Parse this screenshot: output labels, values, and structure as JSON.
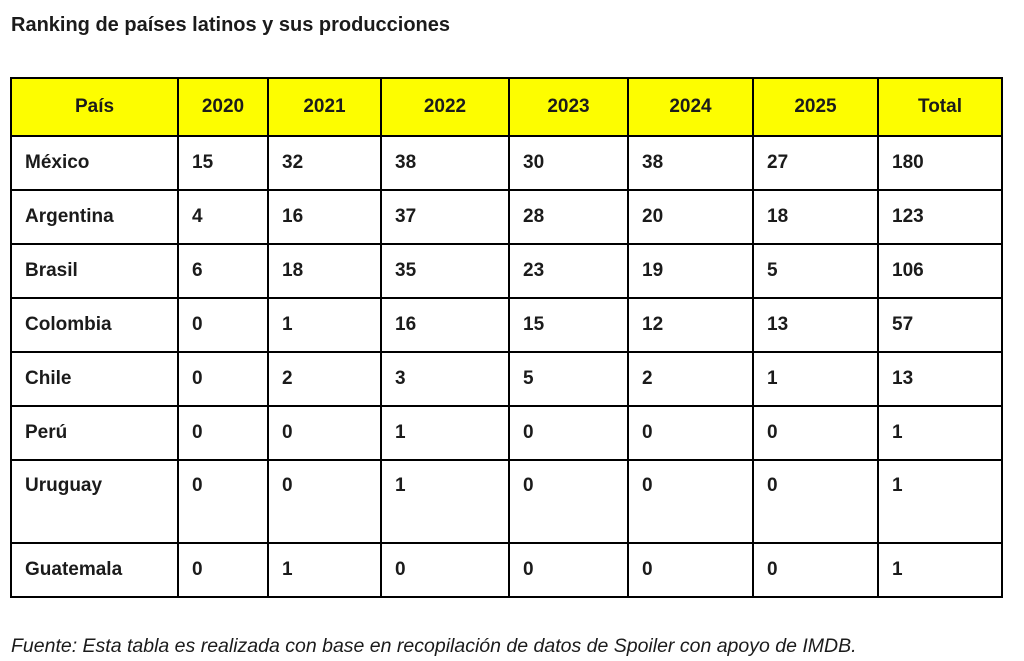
{
  "page": {
    "title": "Ranking de países latinos y sus producciones",
    "source_note": "Fuente: Esta tabla es realizada con base en recopilación de datos de Spoiler con apoyo de IMDB."
  },
  "style": {
    "header_bg": "#fdfd00",
    "border_color": "#000000",
    "text_color": "#1b1b1b"
  },
  "chart_data": {
    "type": "table",
    "title": "Ranking de países latinos y sus producciones",
    "columns": [
      "País",
      "2020",
      "2021",
      "2022",
      "2023",
      "2024",
      "2025",
      "Total"
    ],
    "rows": [
      {
        "country": "México",
        "values": [
          15,
          32,
          38,
          30,
          38,
          27,
          180
        ]
      },
      {
        "country": "Argentina",
        "values": [
          4,
          16,
          37,
          28,
          20,
          18,
          123
        ]
      },
      {
        "country": "Brasil",
        "values": [
          6,
          18,
          35,
          23,
          19,
          5,
          106
        ]
      },
      {
        "country": "Colombia",
        "values": [
          0,
          1,
          16,
          15,
          12,
          13,
          57
        ]
      },
      {
        "country": "Chile",
        "values": [
          0,
          2,
          3,
          5,
          2,
          1,
          13
        ]
      },
      {
        "country": "Perú",
        "values": [
          0,
          0,
          1,
          0,
          0,
          0,
          1
        ]
      },
      {
        "country": "Uruguay",
        "values": [
          0,
          0,
          1,
          0,
          0,
          0,
          1
        ]
      },
      {
        "country": "Guatemala",
        "values": [
          0,
          1,
          0,
          0,
          0,
          0,
          1
        ]
      }
    ],
    "footnote": "Fuente: Esta tabla es realizada con base en recopilación de datos de Spoiler con apoyo de IMDB."
  }
}
